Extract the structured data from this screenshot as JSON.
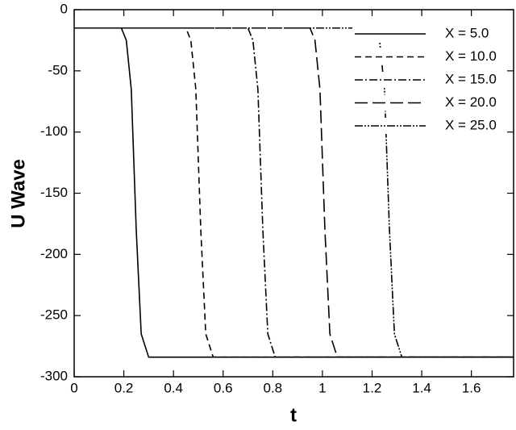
{
  "chart_data": {
    "type": "line",
    "xlabel": "t",
    "ylabel": "U Wave",
    "xlim": [
      0,
      1.77
    ],
    "ylim": [
      -300,
      0
    ],
    "xticks": [
      0,
      0.2,
      0.4,
      0.6,
      0.8,
      1,
      1.2,
      1.4,
      1.6
    ],
    "yticks": [
      0,
      -50,
      -100,
      -150,
      -200,
      -250,
      -300
    ],
    "legend": "upper right",
    "series": [
      {
        "name": "X = 5.0",
        "color": "#000000",
        "dash": "none",
        "x": [
          0,
          0.19,
          0.21,
          0.23,
          0.25,
          0.27,
          0.3,
          1.77
        ],
        "values": [
          -15,
          -15,
          -25,
          -65,
          -180,
          -265,
          -284,
          -284
        ]
      },
      {
        "name": "X = 10.0",
        "color": "#000000",
        "dash": "8,5",
        "x": [
          0,
          0.45,
          0.47,
          0.49,
          0.51,
          0.53,
          0.56,
          1.77
        ],
        "values": [
          -15,
          -15,
          -25,
          -65,
          -180,
          -265,
          -284,
          -284
        ]
      },
      {
        "name": "X = 15.0",
        "color": "#000000",
        "dash": "10,3,2,3",
        "x": [
          0,
          0.7,
          0.72,
          0.74,
          0.76,
          0.78,
          0.81,
          1.77
        ],
        "values": [
          -15,
          -15,
          -25,
          -65,
          -180,
          -265,
          -284,
          -284
        ]
      },
      {
        "name": "X = 20.0",
        "color": "#000000",
        "dash": "16,6",
        "x": [
          0,
          0.95,
          0.97,
          0.99,
          1.01,
          1.03,
          1.06,
          1.77
        ],
        "values": [
          -15,
          -15,
          -25,
          -65,
          -180,
          -265,
          -284,
          -284
        ]
      },
      {
        "name": "X = 25.0",
        "color": "#000000",
        "dash": "10,2,2,2,2,2",
        "x": [
          0,
          1.21,
          1.23,
          1.25,
          1.27,
          1.29,
          1.32,
          1.77
        ],
        "values": [
          -15,
          -15,
          -25,
          -65,
          -180,
          -265,
          -284,
          -284
        ]
      }
    ]
  }
}
